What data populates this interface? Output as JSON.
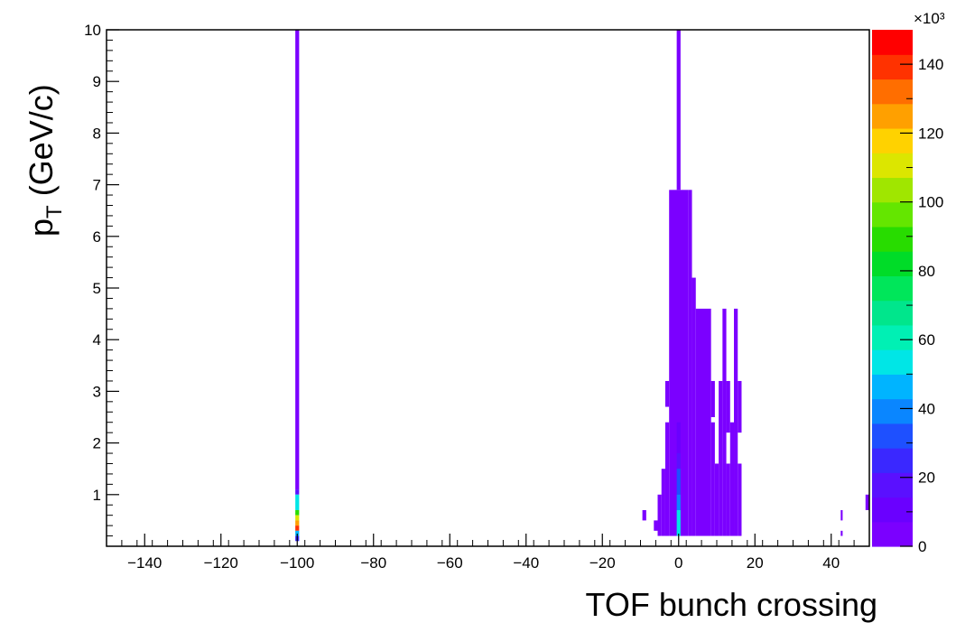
{
  "chart_data": {
    "type": "heatmap",
    "xlabel": "TOF bunch crossing",
    "ylabel_main": "p",
    "ylabel_sub": "T",
    "ylabel_unit": " (GeV/c)",
    "xlim": [
      -150,
      50
    ],
    "ylim": [
      0,
      10
    ],
    "x_ticks": [
      -140,
      -120,
      -100,
      -80,
      -60,
      -40,
      -20,
      0,
      20,
      40
    ],
    "y_ticks": [
      1,
      2,
      3,
      4,
      5,
      6,
      7,
      8,
      9,
      10
    ],
    "colorbar": {
      "range": [
        0,
        150000
      ],
      "tick_values": [
        0,
        20,
        40,
        60,
        80,
        100,
        120,
        140
      ],
      "exponent_label": "×10³",
      "palette": [
        "#7b00ff",
        "#6a00ff",
        "#5a10ff",
        "#3a28ff",
        "#1e50ff",
        "#0a86ff",
        "#00b4ff",
        "#00e6e6",
        "#00f0b4",
        "#00e68c",
        "#00e65a",
        "#00dc28",
        "#28dc00",
        "#64e600",
        "#a0e600",
        "#dce600",
        "#ffd200",
        "#ffa000",
        "#ff6e00",
        "#ff3200",
        "#ff0000"
      ]
    },
    "cells": [
      {
        "x0": -100.5,
        "x1": -99.5,
        "y0": 1.1,
        "y1": 10,
        "v": 5000
      },
      {
        "x0": -100.5,
        "x1": -99.5,
        "y0": 1.0,
        "y1": 1.1,
        "v": 20000
      },
      {
        "x0": -100.5,
        "x1": -99.5,
        "y0": 0.7,
        "y1": 1.0,
        "v": 55000
      },
      {
        "x0": -100.5,
        "x1": -99.5,
        "y0": 0.6,
        "y1": 0.7,
        "v": 90000
      },
      {
        "x0": -100.5,
        "x1": -99.5,
        "y0": 0.5,
        "y1": 0.6,
        "v": 110000
      },
      {
        "x0": -100.5,
        "x1": -99.5,
        "y0": 0.4,
        "y1": 0.5,
        "v": 125000
      },
      {
        "x0": -100.5,
        "x1": -99.5,
        "y0": 0.3,
        "y1": 0.4,
        "v": 140000
      },
      {
        "x0": -100.5,
        "x1": -99.5,
        "y0": 0.2,
        "y1": 0.3,
        "v": 45000
      },
      {
        "x0": -100.5,
        "x1": -99.5,
        "y0": 0.1,
        "y1": 0.2,
        "v": 25000
      },
      {
        "x0": -0.5,
        "x1": 0.5,
        "y0": 6.9,
        "y1": 10,
        "v": 3000
      },
      {
        "x0": -2.5,
        "x1": 2.5,
        "y0": 0.2,
        "y1": 6.9,
        "v": 4000
      },
      {
        "x0": 2.5,
        "x1": 3.5,
        "y0": 0.2,
        "y1": 6.9,
        "v": 3000
      },
      {
        "x0": 3.5,
        "x1": 4.5,
        "y0": 0.2,
        "y1": 5.2,
        "v": 3000
      },
      {
        "x0": 4.5,
        "x1": 8.5,
        "y0": 0.2,
        "y1": 4.6,
        "v": 3000
      },
      {
        "x0": -3.5,
        "x1": -2.5,
        "y0": 0.2,
        "y1": 2.4,
        "v": 3000
      },
      {
        "x0": -3.5,
        "x1": -2.5,
        "y0": 2.7,
        "y1": 3.2,
        "v": 3000
      },
      {
        "x0": -4.5,
        "x1": -3.5,
        "y0": 0.2,
        "y1": 1.5,
        "v": 3000
      },
      {
        "x0": -5.5,
        "x1": -4.5,
        "y0": 0.2,
        "y1": 1.0,
        "v": 3000
      },
      {
        "x0": -6.5,
        "x1": -5.5,
        "y0": 0.3,
        "y1": 0.5,
        "v": 3000
      },
      {
        "x0": -9.5,
        "x1": -8.5,
        "y0": 0.5,
        "y1": 0.7,
        "v": 3000
      },
      {
        "x0": 8.5,
        "x1": 9.5,
        "y0": 0.2,
        "y1": 2.4,
        "v": 3000
      },
      {
        "x0": 8.5,
        "x1": 9.5,
        "y0": 2.5,
        "y1": 3.2,
        "v": 3000
      },
      {
        "x0": 9.5,
        "x1": 10.5,
        "y0": 0.2,
        "y1": 1.6,
        "v": 3000
      },
      {
        "x0": 10.5,
        "x1": 11.5,
        "y0": 0.2,
        "y1": 3.2,
        "v": 3000
      },
      {
        "x0": 11.5,
        "x1": 12.5,
        "y0": 0.2,
        "y1": 4.6,
        "v": 3000
      },
      {
        "x0": 12.5,
        "x1": 13.5,
        "y0": 0.2,
        "y1": 1.6,
        "v": 3000
      },
      {
        "x0": 12.5,
        "x1": 13.5,
        "y0": 2.2,
        "y1": 3.2,
        "v": 3000
      },
      {
        "x0": 13.5,
        "x1": 14.5,
        "y0": 0.2,
        "y1": 2.4,
        "v": 3000
      },
      {
        "x0": 14.5,
        "x1": 15.5,
        "y0": 0.2,
        "y1": 4.6,
        "v": 3000
      },
      {
        "x0": 15.5,
        "x1": 16.5,
        "y0": 0.2,
        "y1": 1.6,
        "v": 3000
      },
      {
        "x0": 15.5,
        "x1": 16.5,
        "y0": 2.2,
        "y1": 3.2,
        "v": 3000
      },
      {
        "x0": 42.5,
        "x1": 43,
        "y0": 0.5,
        "y1": 0.7,
        "v": 3000
      },
      {
        "x0": 42.5,
        "x1": 43,
        "y0": 0.2,
        "y1": 0.3,
        "v": 3000
      },
      {
        "x0": 49,
        "x1": 50,
        "y0": 0.7,
        "y1": 1.0,
        "v": 3000
      },
      {
        "x0": -0.5,
        "x1": 0.5,
        "y0": 1.8,
        "y1": 2.4,
        "v": 12000
      },
      {
        "x0": -0.5,
        "x1": 0.5,
        "y0": 1.5,
        "y1": 1.8,
        "v": 20000
      },
      {
        "x0": -0.5,
        "x1": 0.5,
        "y0": 1.0,
        "y1": 1.5,
        "v": 30000
      },
      {
        "x0": -0.5,
        "x1": 0.5,
        "y0": 0.7,
        "y1": 1.0,
        "v": 42000
      },
      {
        "x0": -0.5,
        "x1": 0.5,
        "y0": 0.2,
        "y1": 0.7,
        "v": 55000
      }
    ]
  }
}
